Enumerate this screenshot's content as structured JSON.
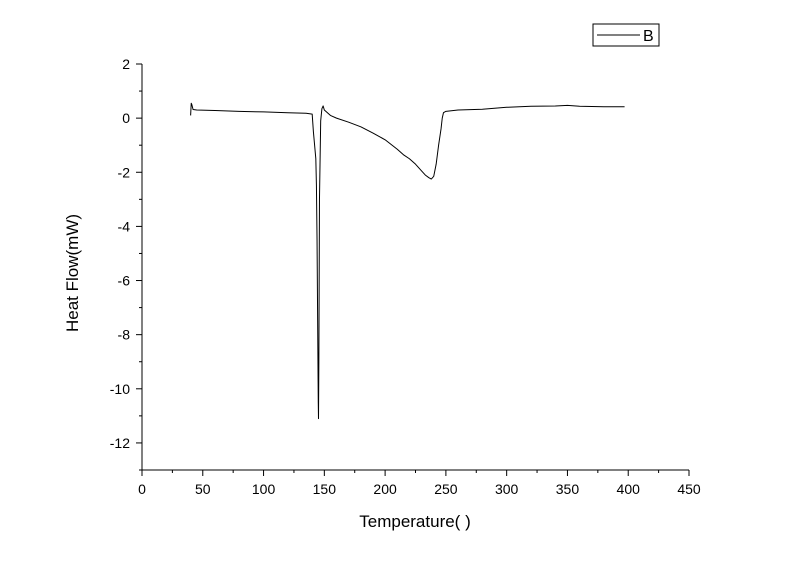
{
  "chart_data": {
    "type": "line",
    "xlabel": "Temperature(  )",
    "ylabel": "Heat Flow(mW)",
    "xlim": [
      0,
      450
    ],
    "ylim": [
      -13,
      2
    ],
    "x_ticks": [
      0,
      50,
      100,
      150,
      200,
      250,
      300,
      350,
      400,
      450
    ],
    "y_ticks": [
      2,
      0,
      -2,
      -4,
      -6,
      -8,
      -10,
      -12
    ],
    "grid": false,
    "legend_position": "top-right",
    "series": [
      {
        "name": "B",
        "color": "#000000",
        "x": [
          40,
          40.5,
          41,
          42,
          45,
          60,
          80,
          100,
          120,
          135,
          140,
          141,
          142,
          143,
          143.5,
          144,
          144.5,
          145,
          145.2,
          145.5,
          146,
          147,
          148,
          149,
          150,
          155,
          160,
          170,
          180,
          190,
          200,
          210,
          215,
          220,
          225,
          230,
          233,
          236,
          238,
          240,
          242,
          244,
          246,
          247,
          248,
          250,
          260,
          280,
          300,
          320,
          340,
          350,
          360,
          380,
          397
        ],
        "y": [
          0.1,
          0.55,
          0.5,
          0.32,
          0.3,
          0.28,
          0.25,
          0.23,
          0.2,
          0.18,
          0.15,
          -0.5,
          -1.0,
          -1.5,
          -2.5,
          -4.5,
          -7.5,
          -10.5,
          -11.1,
          -9.0,
          -3.0,
          -0.1,
          0.35,
          0.45,
          0.3,
          0.1,
          0.0,
          -0.15,
          -0.32,
          -0.55,
          -0.8,
          -1.15,
          -1.35,
          -1.5,
          -1.7,
          -1.95,
          -2.1,
          -2.2,
          -2.25,
          -2.15,
          -1.7,
          -1.0,
          -0.4,
          0.0,
          0.2,
          0.25,
          0.3,
          0.33,
          0.4,
          0.44,
          0.45,
          0.47,
          0.44,
          0.42,
          0.42
        ]
      }
    ]
  }
}
